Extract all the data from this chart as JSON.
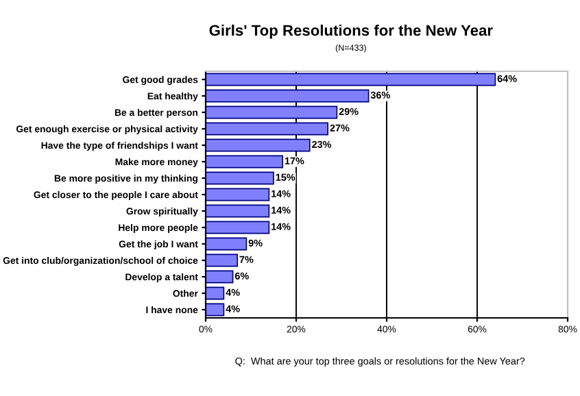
{
  "chart_data": {
    "type": "bar",
    "orientation": "horizontal",
    "title": "Girls' Top Resolutions for the New Year",
    "subtitle": "(N=433)",
    "categories": [
      "Get good grades",
      "Eat healthy",
      "Be a better person",
      "Get enough exercise or physical activity",
      "Have the type of friendships I want",
      "Make more money",
      "Be more positive in my thinking",
      "Get closer to the people I care about",
      "Grow spiritually",
      "Help more people",
      "Get the job I want",
      "Get into club/organization/school of choice",
      "Develop a talent",
      "Other",
      "I have none"
    ],
    "values": [
      64,
      36,
      29,
      27,
      23,
      17,
      15,
      14,
      14,
      14,
      9,
      7,
      6,
      4,
      4
    ],
    "value_labels": [
      "64%",
      "36%",
      "29%",
      "27%",
      "23%",
      "17%",
      "15%",
      "14%",
      "14%",
      "14%",
      "9%",
      "7%",
      "6%",
      "4%",
      "4%"
    ],
    "color": "#8080ff",
    "xlim": [
      0,
      80
    ],
    "xticks": [
      {
        "value": 0,
        "label": "0%"
      },
      {
        "value": 20,
        "label": "20%"
      },
      {
        "value": 40,
        "label": "40%"
      },
      {
        "value": 60,
        "label": "60%"
      },
      {
        "value": 80,
        "label": "80%"
      }
    ],
    "grid": "x",
    "annotations": [
      "Q:  What are your top three goals or resolutions for the New Year?"
    ]
  }
}
